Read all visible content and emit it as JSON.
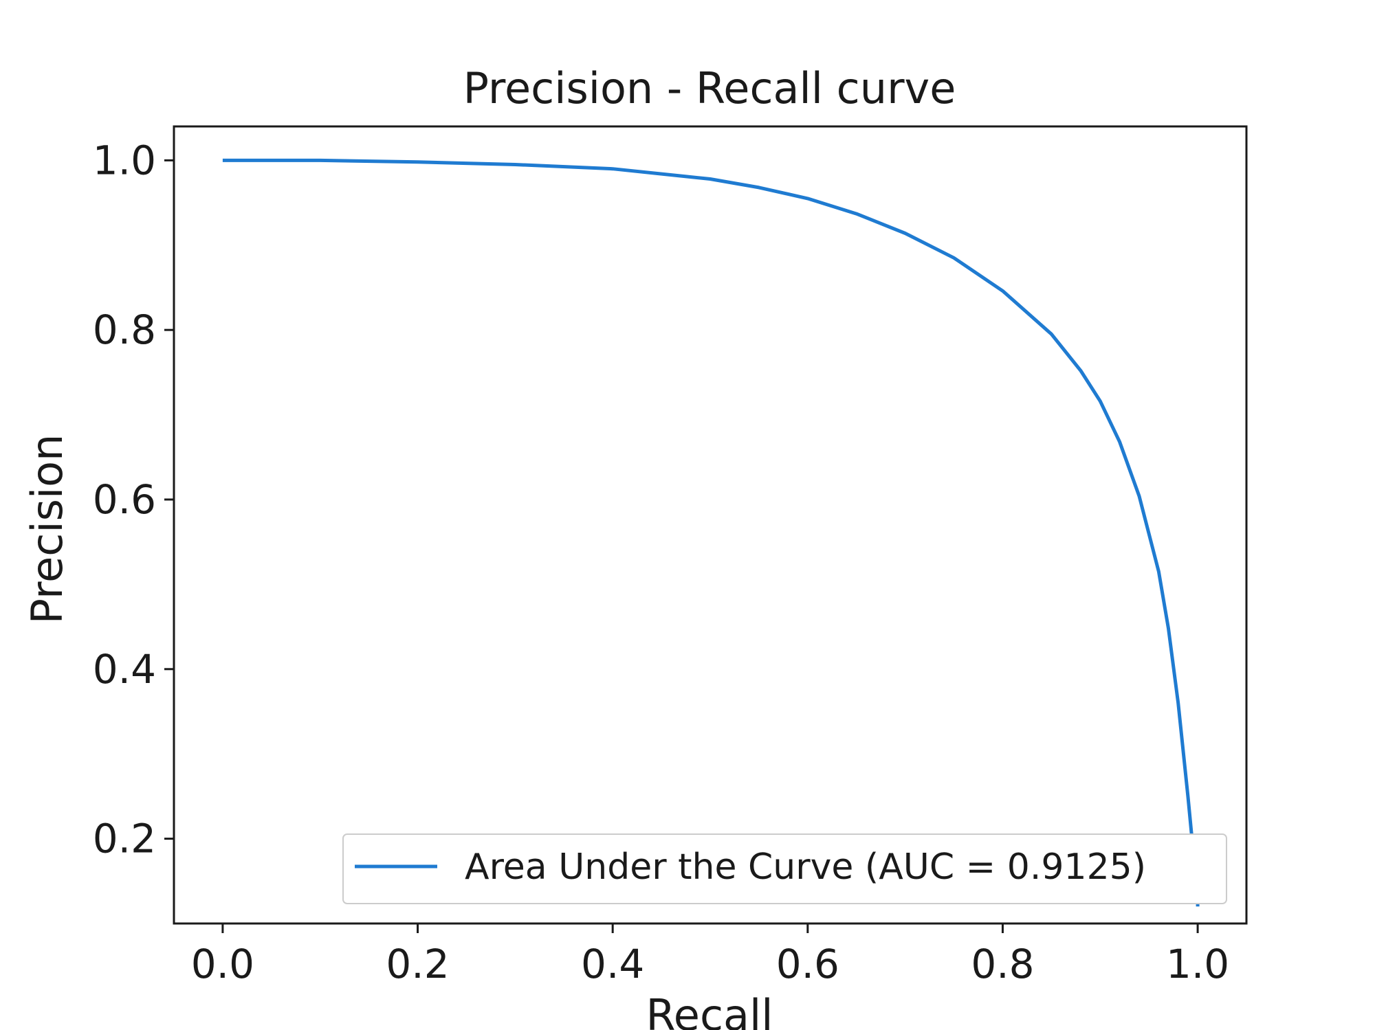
{
  "chart_data": {
    "type": "line",
    "title": "Precision - Recall curve",
    "xlabel": "Recall",
    "ylabel": "Precision",
    "xlim": [
      -0.05,
      1.05
    ],
    "ylim": [
      0.1,
      1.04
    ],
    "grid": false,
    "legend_position": "bottom-right",
    "xticks": [
      0.0,
      0.2,
      0.4,
      0.6,
      0.8,
      1.0
    ],
    "xtick_labels": [
      "0.0",
      "0.2",
      "0.4",
      "0.6",
      "0.8",
      "1.0"
    ],
    "yticks": [
      0.2,
      0.4,
      0.6,
      0.8,
      1.0
    ],
    "ytick_labels": [
      "0.2",
      "0.4",
      "0.6",
      "0.8",
      "1.0"
    ],
    "series": [
      {
        "name": "Area Under the Curve (AUC = 0.9125)",
        "color": "#1f7bd1",
        "x": [
          0.0,
          0.1,
          0.2,
          0.3,
          0.4,
          0.5,
          0.55,
          0.6,
          0.65,
          0.7,
          0.75,
          0.8,
          0.85,
          0.88,
          0.9,
          0.92,
          0.94,
          0.96,
          0.97,
          0.98,
          0.99,
          1.0,
          1.0
        ],
        "y": [
          1.0,
          1.0,
          0.998,
          0.995,
          0.99,
          0.978,
          0.968,
          0.955,
          0.937,
          0.914,
          0.885,
          0.846,
          0.795,
          0.752,
          0.716,
          0.668,
          0.604,
          0.515,
          0.448,
          0.36,
          0.25,
          0.13,
          0.12
        ]
      }
    ]
  }
}
